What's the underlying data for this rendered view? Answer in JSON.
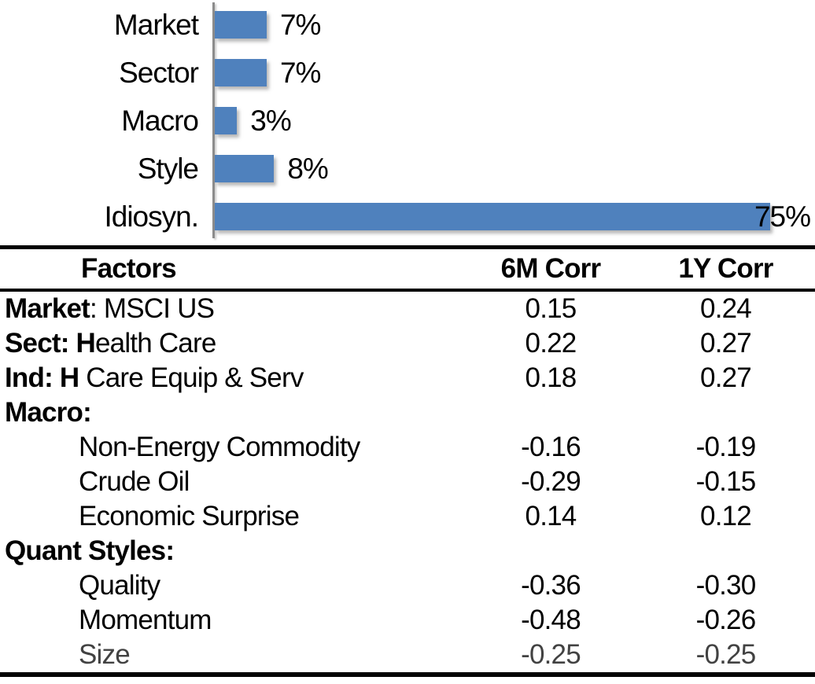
{
  "chart_data": [
    {
      "type": "bar",
      "orientation": "horizontal",
      "title": "",
      "xlabel": "",
      "ylabel": "",
      "categories": [
        "Market",
        "Sector",
        "Macro",
        "Style",
        "Idiosyn."
      ],
      "values": [
        7,
        7,
        3,
        8,
        75
      ],
      "value_labels": [
        "7%",
        "7%",
        "3%",
        "8%",
        "75%"
      ],
      "xlim": [
        0,
        81
      ],
      "grid": false,
      "legend": false,
      "bar_color": "#4F81BD",
      "axis_color": "#8c8c8c",
      "data_label_position": "end-of-bar; 75% label overlaps bar end"
    },
    {
      "type": "table",
      "headers": [
        "Factors",
        "6M Corr",
        "1Y Corr"
      ],
      "rows": [
        {
          "bold": "Market",
          "rest": ": MSCI US",
          "indent": false,
          "c6m": "0.15",
          "c1y": "0.24"
        },
        {
          "bold": "Sect: H",
          "rest": "ealth Care",
          "indent": false,
          "c6m": "0.22",
          "c1y": "0.27"
        },
        {
          "bold": "Ind: H",
          "rest": " Care Equip & Serv",
          "indent": false,
          "c6m": "0.18",
          "c1y": "0.27"
        },
        {
          "bold": "Macro:",
          "rest": "",
          "indent": false,
          "c6m": "",
          "c1y": ""
        },
        {
          "bold": "",
          "rest": "Non-Energy Commodity",
          "indent": true,
          "c6m": "-0.16",
          "c1y": "-0.19"
        },
        {
          "bold": "",
          "rest": "Crude Oil",
          "indent": true,
          "c6m": "-0.29",
          "c1y": "-0.15"
        },
        {
          "bold": "",
          "rest": "Economic Surprise",
          "indent": true,
          "c6m": "0.14",
          "c1y": "0.12"
        },
        {
          "bold": "Quant Styles:",
          "rest": "",
          "indent": false,
          "c6m": "",
          "c1y": ""
        },
        {
          "bold": "",
          "rest": "Quality",
          "indent": true,
          "c6m": "-0.36",
          "c1y": "-0.30"
        },
        {
          "bold": "",
          "rest": "Momentum",
          "indent": true,
          "c6m": "-0.48",
          "c1y": "-0.26"
        },
        {
          "bold": "",
          "rest": "Size",
          "indent": true,
          "c6m": "-0.25",
          "c1y": "-0.25"
        }
      ]
    }
  ]
}
